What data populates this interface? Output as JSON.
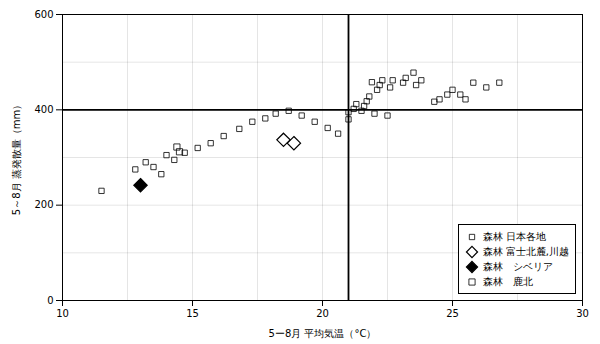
{
  "chart_data": {
    "type": "scatter",
    "xlabel": "5ー8月 平均気温（°C）",
    "ylabel": "5～8月 蒸発散量（mm）",
    "xlim": [
      10,
      30
    ],
    "ylim": [
      0,
      600
    ],
    "xticks": [
      10,
      15,
      20,
      25,
      30
    ],
    "yticks": [
      0,
      200,
      400,
      600
    ],
    "minor_xticks": [
      12.5,
      17.5,
      22.5,
      27.5
    ],
    "minor_yticks": [
      100,
      300,
      500
    ],
    "vline_x": 21,
    "hline_y": 400,
    "grid": true,
    "legend": "lower right",
    "series": [
      {
        "name": "森林 日本各地",
        "color": "#000000",
        "marker": "square_open",
        "values": [
          [
            11.5,
            230
          ],
          [
            12.8,
            275
          ],
          [
            13.2,
            290
          ],
          [
            13.5,
            280
          ],
          [
            13.8,
            265
          ],
          [
            14.0,
            305
          ],
          [
            14.3,
            295
          ],
          [
            14.7,
            310
          ],
          [
            15.2,
            320
          ],
          [
            15.7,
            330
          ],
          [
            16.2,
            345
          ],
          [
            16.8,
            360
          ],
          [
            17.3,
            375
          ],
          [
            17.8,
            382
          ],
          [
            18.2,
            392
          ],
          [
            18.7,
            398
          ],
          [
            19.2,
            388
          ],
          [
            19.7,
            375
          ],
          [
            20.2,
            362
          ],
          [
            20.6,
            350
          ],
          [
            21.0,
            380
          ],
          [
            21.0,
            395
          ],
          [
            21.2,
            402
          ],
          [
            21.3,
            412
          ],
          [
            21.5,
            398
          ],
          [
            21.6,
            408
          ],
          [
            21.7,
            418
          ],
          [
            21.8,
            428
          ],
          [
            21.9,
            458
          ],
          [
            22.1,
            442
          ],
          [
            22.2,
            452
          ],
          [
            22.3,
            462
          ],
          [
            22.6,
            447
          ],
          [
            22.7,
            462
          ],
          [
            23.1,
            457
          ],
          [
            23.2,
            467
          ],
          [
            23.6,
            452
          ],
          [
            23.8,
            462
          ],
          [
            24.3,
            417
          ],
          [
            24.8,
            432
          ],
          [
            25.0,
            442
          ],
          [
            25.3,
            432
          ],
          [
            25.8,
            457
          ],
          [
            26.8,
            457
          ],
          [
            22.0,
            392
          ],
          [
            22.5,
            388
          ],
          [
            23.5,
            478
          ],
          [
            24.5,
            422
          ],
          [
            25.5,
            422
          ],
          [
            26.3,
            447
          ]
        ]
      },
      {
        "name": "森林 富士北麓,川越",
        "color": "#000000",
        "marker": "diamond_open",
        "values": [
          [
            18.5,
            337
          ],
          [
            18.9,
            330
          ]
        ]
      },
      {
        "name": "森林　シベリア",
        "color": "#000000",
        "marker": "diamond_filled",
        "values": [
          [
            13.0,
            242
          ]
        ]
      },
      {
        "name": "森林　鹿北",
        "color": "#000000",
        "marker": "square_open",
        "values": [
          [
            14.4,
            322
          ],
          [
            14.5,
            312
          ]
        ]
      }
    ]
  }
}
